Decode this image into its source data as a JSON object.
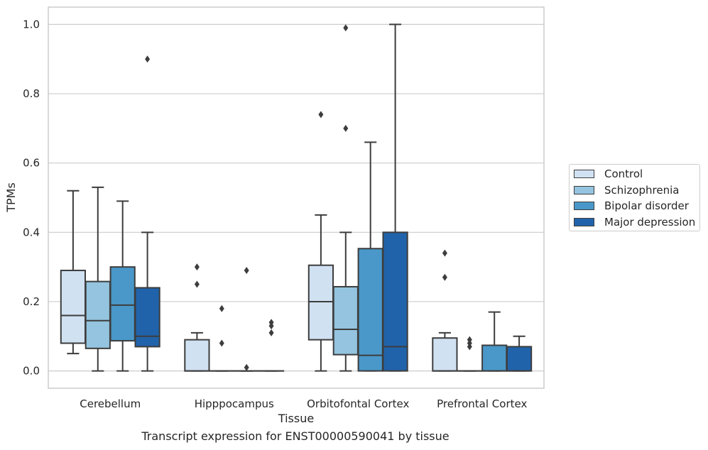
{
  "caption": "Transcript expression for ENST00000590041 by tissue",
  "chart_data": {
    "type": "box",
    "xlabel": "Tissue",
    "ylabel": "TPMs",
    "ylim": [
      -0.05,
      1.05
    ],
    "yticks": [
      "0.0",
      "0.2",
      "0.4",
      "0.6",
      "0.8",
      "1.0"
    ],
    "grid": true,
    "legend_position": "right",
    "categories": [
      "Cerebellum",
      "Hipppocampus",
      "Orbitofontal Cortex",
      "Prefrontal Cortex"
    ],
    "series": [
      {
        "name": "Control",
        "color": "#d0e1f2",
        "boxes": [
          {
            "q1": 0.08,
            "median": 0.16,
            "q3": 0.29,
            "whisker_low": 0.05,
            "whisker_high": 0.52,
            "outliers": []
          },
          {
            "q1": 0.0,
            "median": 0.0,
            "q3": 0.09,
            "whisker_low": 0.0,
            "whisker_high": 0.11,
            "outliers": [
              0.3,
              0.25
            ]
          },
          {
            "q1": 0.09,
            "median": 0.2,
            "q3": 0.305,
            "whisker_low": 0.0,
            "whisker_high": 0.45,
            "outliers": [
              0.74
            ]
          },
          {
            "q1": 0.0,
            "median": 0.0,
            "q3": 0.095,
            "whisker_low": 0.0,
            "whisker_high": 0.11,
            "outliers": [
              0.34,
              0.27
            ]
          }
        ]
      },
      {
        "name": "Schizophrenia",
        "color": "#94c4df",
        "boxes": [
          {
            "q1": 0.065,
            "median": 0.145,
            "q3": 0.258,
            "whisker_low": 0.0,
            "whisker_high": 0.53,
            "outliers": []
          },
          {
            "q1": 0.0,
            "median": 0.0,
            "q3": 0.0,
            "whisker_low": 0.0,
            "whisker_high": 0.0,
            "outliers": [
              0.18,
              0.08
            ]
          },
          {
            "q1": 0.047,
            "median": 0.12,
            "q3": 0.243,
            "whisker_low": 0.0,
            "whisker_high": 0.4,
            "outliers": [
              0.99,
              0.7
            ]
          },
          {
            "q1": 0.0,
            "median": 0.0,
            "q3": 0.0,
            "whisker_low": 0.0,
            "whisker_high": 0.0,
            "outliers": [
              0.09,
              0.08,
              0.07
            ]
          }
        ]
      },
      {
        "name": "Bipolar disorder",
        "color": "#4a98c9",
        "boxes": [
          {
            "q1": 0.087,
            "median": 0.19,
            "q3": 0.3,
            "whisker_low": 0.0,
            "whisker_high": 0.49,
            "outliers": []
          },
          {
            "q1": 0.0,
            "median": 0.0,
            "q3": 0.0,
            "whisker_low": 0.0,
            "whisker_high": 0.0,
            "outliers": [
              0.29,
              0.01
            ]
          },
          {
            "q1": 0.0,
            "median": 0.045,
            "q3": 0.353,
            "whisker_low": 0.0,
            "whisker_high": 0.66,
            "outliers": []
          },
          {
            "q1": 0.0,
            "median": 0.0,
            "q3": 0.074,
            "whisker_low": 0.0,
            "whisker_high": 0.17,
            "outliers": []
          }
        ]
      },
      {
        "name": "Major depression",
        "color": "#2163aa",
        "boxes": [
          {
            "q1": 0.07,
            "median": 0.1,
            "q3": 0.24,
            "whisker_low": 0.0,
            "whisker_high": 0.4,
            "outliers": [
              0.9
            ]
          },
          {
            "q1": 0.0,
            "median": 0.0,
            "q3": 0.0,
            "whisker_low": 0.0,
            "whisker_high": 0.0,
            "outliers": [
              0.14,
              0.13,
              0.11
            ]
          },
          {
            "q1": 0.0,
            "median": 0.07,
            "q3": 0.4,
            "whisker_low": 0.0,
            "whisker_high": 1.0,
            "outliers": []
          },
          {
            "q1": 0.0,
            "median": 0.0,
            "q3": 0.07,
            "whisker_low": 0.0,
            "whisker_high": 0.1,
            "outliers": []
          }
        ]
      }
    ]
  }
}
